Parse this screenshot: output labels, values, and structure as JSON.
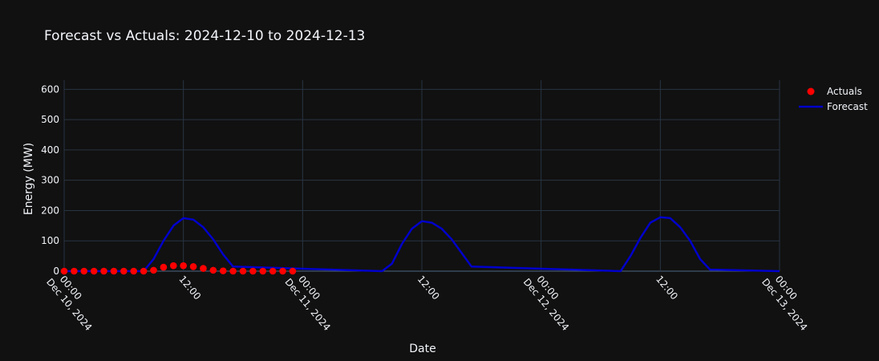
{
  "chart_data": {
    "type": "line",
    "title": "Forecast vs Actuals: 2024-12-10 to 2024-12-13",
    "xlabel": "Date",
    "ylabel": "Energy (MW)",
    "xlim": [
      "2024-12-10 00:00",
      "2024-12-13 00:00"
    ],
    "ylim": [
      0,
      630
    ],
    "yticks": [
      0,
      100,
      200,
      300,
      400,
      500,
      600
    ],
    "xticks": [
      {
        "value": "2024-12-10 00:00",
        "line1": "00:00",
        "line2": "Dec 10, 2024"
      },
      {
        "value": "2024-12-10 12:00",
        "line1": "12:00",
        "line2": ""
      },
      {
        "value": "2024-12-11 00:00",
        "line1": "00:00",
        "line2": "Dec 11, 2024"
      },
      {
        "value": "2024-12-11 12:00",
        "line1": "12:00",
        "line2": ""
      },
      {
        "value": "2024-12-12 00:00",
        "line1": "00:00",
        "line2": "Dec 12, 2024"
      },
      {
        "value": "2024-12-12 12:00",
        "line1": "12:00",
        "line2": ""
      },
      {
        "value": "2024-12-13 00:00",
        "line1": "00:00",
        "line2": "Dec 13, 2024"
      }
    ],
    "grid": true,
    "legend_position": "top-right",
    "series": [
      {
        "name": "Actuals",
        "mode": "markers",
        "color": "#ff0000",
        "x": [
          "2024-12-10 00:00",
          "2024-12-10 01:00",
          "2024-12-10 02:00",
          "2024-12-10 03:00",
          "2024-12-10 04:00",
          "2024-12-10 05:00",
          "2024-12-10 06:00",
          "2024-12-10 07:00",
          "2024-12-10 08:00",
          "2024-12-10 09:00",
          "2024-12-10 10:00",
          "2024-12-10 11:00",
          "2024-12-10 12:00",
          "2024-12-10 13:00",
          "2024-12-10 14:00",
          "2024-12-10 15:00",
          "2024-12-10 16:00",
          "2024-12-10 17:00",
          "2024-12-10 18:00",
          "2024-12-10 19:00",
          "2024-12-10 20:00",
          "2024-12-10 21:00",
          "2024-12-10 22:00",
          "2024-12-10 23:00"
        ],
        "y": [
          0,
          0,
          0,
          0,
          0,
          0,
          0,
          0,
          0,
          3,
          13,
          18,
          18,
          15,
          9,
          3,
          1,
          0,
          0,
          0,
          0,
          0,
          0,
          0
        ]
      },
      {
        "name": "Forecast",
        "mode": "lines",
        "color": "#0000cc",
        "x": [
          "2024-12-10 00:00",
          "2024-12-10 08:00",
          "2024-12-10 09:00",
          "2024-12-10 10:00",
          "2024-12-10 11:00",
          "2024-12-10 12:00",
          "2024-12-10 13:00",
          "2024-12-10 14:00",
          "2024-12-10 15:00",
          "2024-12-10 16:00",
          "2024-12-10 17:00",
          "2024-12-11 08:00",
          "2024-12-11 09:00",
          "2024-12-11 10:00",
          "2024-12-11 11:00",
          "2024-12-11 12:00",
          "2024-12-11 13:00",
          "2024-12-11 14:00",
          "2024-12-11 15:00",
          "2024-12-11 16:00",
          "2024-12-11 17:00",
          "2024-12-12 08:00",
          "2024-12-12 09:00",
          "2024-12-12 10:00",
          "2024-12-12 11:00",
          "2024-12-12 12:00",
          "2024-12-12 13:00",
          "2024-12-12 14:00",
          "2024-12-12 15:00",
          "2024-12-12 16:00",
          "2024-12-12 17:00",
          "2024-12-13 00:00"
        ],
        "y": [
          0,
          0,
          40,
          100,
          150,
          175,
          170,
          145,
          105,
          55,
          15,
          0,
          25,
          90,
          140,
          165,
          160,
          140,
          105,
          60,
          15,
          0,
          50,
          110,
          160,
          178,
          175,
          145,
          100,
          40,
          5,
          0
        ]
      }
    ]
  }
}
